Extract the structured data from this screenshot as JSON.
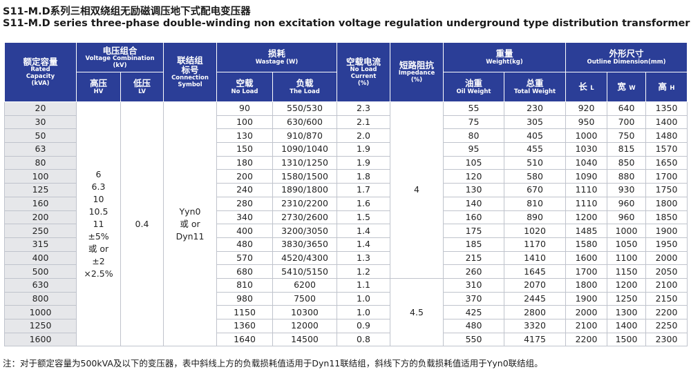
{
  "title_cn": "S11-M.D系列三相双绕组无励磁调压地下式配电变压器",
  "title_en": "S11-M.D series three-phase double-winding non excitation voltage regulation underground type distribution transformer",
  "headers": {
    "capacity": {
      "cn": "额定容量",
      "en1": "Rated",
      "en2": "Capacity",
      "en3": "(kVA)"
    },
    "voltage": {
      "cn": "电压组合",
      "en1": "Voltage Combination",
      "en2": "(kV)"
    },
    "hv": {
      "cn": "高压",
      "en": "HV"
    },
    "lv": {
      "cn": "低压",
      "en": "LV"
    },
    "connection": {
      "cn1": "联结组",
      "cn2": "标号",
      "en1": "Connection",
      "en2": "Symbol"
    },
    "wastage": {
      "cn": "损耗",
      "en": "Wastage (W)"
    },
    "no_load": {
      "cn": "空载",
      "en": "No Load"
    },
    "the_load": {
      "cn": "负载",
      "en": "The Load"
    },
    "no_load_current": {
      "cn": "空载电流",
      "en1": "No Load",
      "en2": "Current",
      "en3": "(%)"
    },
    "impedance": {
      "cn": "短路阻抗",
      "en1": "Impedance",
      "en2": "(%)"
    },
    "weight": {
      "cn": "重量",
      "en": "Weight(kg)"
    },
    "oil_weight": {
      "cn": "油重",
      "en": "Oil Weight"
    },
    "total_weight": {
      "cn": "总重",
      "en": "Total Weight"
    },
    "outline": {
      "cn": "外形尺寸",
      "en": "Outline Dimension(mm)"
    },
    "length": {
      "cn": "长",
      "en": "L"
    },
    "width": {
      "cn": "宽",
      "en": "W"
    },
    "height": {
      "cn": "高",
      "en": "H"
    }
  },
  "hv_values": [
    "6",
    "6.3",
    "10",
    "10.5",
    "11",
    "±5%",
    "或 or",
    "±2",
    "×2.5%"
  ],
  "lv_value": "0.4",
  "connection_values": [
    "Yyn0",
    "或 or",
    "Dyn11"
  ],
  "impedance_values": [
    "4",
    "4.5"
  ],
  "rows": [
    {
      "capacity": "20",
      "no_load": "90",
      "load": "550/530",
      "current": "2.3",
      "oil": "55",
      "total": "230",
      "l": "920",
      "w": "640",
      "h": "1350"
    },
    {
      "capacity": "30",
      "no_load": "100",
      "load": "630/600",
      "current": "2.1",
      "oil": "75",
      "total": "305",
      "l": "950",
      "w": "700",
      "h": "1400"
    },
    {
      "capacity": "50",
      "no_load": "130",
      "load": "910/870",
      "current": "2.0",
      "oil": "80",
      "total": "405",
      "l": "1000",
      "w": "750",
      "h": "1480"
    },
    {
      "capacity": "63",
      "no_load": "150",
      "load": "1090/1040",
      "current": "1.9",
      "oil": "95",
      "total": "455",
      "l": "1030",
      "w": "815",
      "h": "1570"
    },
    {
      "capacity": "80",
      "no_load": "180",
      "load": "1310/1250",
      "current": "1.9",
      "oil": "105",
      "total": "510",
      "l": "1040",
      "w": "850",
      "h": "1650"
    },
    {
      "capacity": "100",
      "no_load": "200",
      "load": "1580/1500",
      "current": "1.8",
      "oil": "120",
      "total": "580",
      "l": "1090",
      "w": "880",
      "h": "1700"
    },
    {
      "capacity": "125",
      "no_load": "240",
      "load": "1890/1800",
      "current": "1.7",
      "oil": "130",
      "total": "670",
      "l": "1110",
      "w": "930",
      "h": "1750"
    },
    {
      "capacity": "160",
      "no_load": "280",
      "load": "2310/2200",
      "current": "1.6",
      "oil": "140",
      "total": "810",
      "l": "1110",
      "w": "960",
      "h": "1800"
    },
    {
      "capacity": "200",
      "no_load": "340",
      "load": "2730/2600",
      "current": "1.5",
      "oil": "160",
      "total": "890",
      "l": "1200",
      "w": "960",
      "h": "1850"
    },
    {
      "capacity": "250",
      "no_load": "400",
      "load": "3200/3050",
      "current": "1.4",
      "oil": "175",
      "total": "1020",
      "l": "1485",
      "w": "1000",
      "h": "1900"
    },
    {
      "capacity": "315",
      "no_load": "480",
      "load": "3830/3650",
      "current": "1.4",
      "oil": "185",
      "total": "1170",
      "l": "1580",
      "w": "1050",
      "h": "1950"
    },
    {
      "capacity": "400",
      "no_load": "570",
      "load": "4520/4300",
      "current": "1.3",
      "oil": "215",
      "total": "1410",
      "l": "1600",
      "w": "1100",
      "h": "2000"
    },
    {
      "capacity": "500",
      "no_load": "680",
      "load": "5410/5150",
      "current": "1.2",
      "oil": "260",
      "total": "1645",
      "l": "1700",
      "w": "1150",
      "h": "2050"
    },
    {
      "capacity": "630",
      "no_load": "810",
      "load": "6200",
      "current": "1.1",
      "oil": "310",
      "total": "2070",
      "l": "1800",
      "w": "1200",
      "h": "2100"
    },
    {
      "capacity": "800",
      "no_load": "980",
      "load": "7500",
      "current": "1.0",
      "oil": "370",
      "total": "2445",
      "l": "1900",
      "w": "1250",
      "h": "2150"
    },
    {
      "capacity": "1000",
      "no_load": "1150",
      "load": "10300",
      "current": "1.0",
      "oil": "425",
      "total": "2800",
      "l": "2000",
      "w": "1300",
      "h": "2200"
    },
    {
      "capacity": "1250",
      "no_load": "1360",
      "load": "12000",
      "current": "0.9",
      "oil": "480",
      "total": "3320",
      "l": "2100",
      "w": "1400",
      "h": "2250"
    },
    {
      "capacity": "1600",
      "no_load": "1640",
      "load": "14500",
      "current": "0.8",
      "oil": "550",
      "total": "4175",
      "l": "2200",
      "w": "1500",
      "h": "2300"
    }
  ],
  "note": "注：对于额定容量为500kVA及以下的变压器，表中斜线上方的负载损耗值适用于Dyn11联结组，斜线下方的负载损耗值适用于Yyn0联结组。",
  "colors": {
    "header_bg": "#2b3e97",
    "capacity_bg": "#e6e7ea",
    "border": "#bfc3cc"
  }
}
